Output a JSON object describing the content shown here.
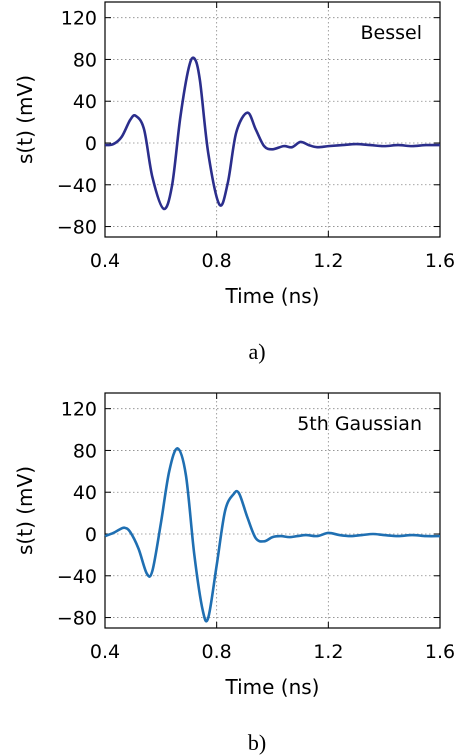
{
  "chart_data": [
    {
      "type": "line",
      "panel_label": "a)",
      "annotation": "Bessel",
      "xlabel": "Time (ns)",
      "ylabel": "s(t) (mV)",
      "xlim": [
        0.4,
        1.6
      ],
      "ylim": [
        -90,
        135
      ],
      "xticks": [
        "0.4",
        "0.8",
        "1.2",
        "1.6"
      ],
      "yticks": [
        "120",
        "80",
        "40",
        "0",
        "−40",
        "−80"
      ],
      "grid": true,
      "color": "#2b2e8c",
      "series": [
        {
          "x": [
            0.4,
            0.43,
            0.46,
            0.49,
            0.51,
            0.54,
            0.57,
            0.61,
            0.64,
            0.67,
            0.7,
            0.72,
            0.74,
            0.77,
            0.81,
            0.84,
            0.87,
            0.91,
            0.94,
            0.97,
            1.0,
            1.04,
            1.07,
            1.1,
            1.13,
            1.16,
            1.2,
            1.25,
            1.3,
            1.35,
            1.4,
            1.45,
            1.5,
            1.55,
            1.6
          ],
          "y": [
            -2,
            -1,
            6,
            22,
            26,
            13,
            -33,
            -63,
            -41,
            25,
            72,
            81,
            60,
            -10,
            -59,
            -38,
            10,
            29,
            13,
            -3,
            -6,
            -3,
            -4,
            1,
            -2,
            -4,
            -3,
            -2,
            -1,
            -2,
            -3,
            -2,
            -3,
            -2,
            -2
          ]
        }
      ]
    },
    {
      "type": "line",
      "panel_label": "b)",
      "annotation": "5th Gaussian",
      "xlabel": "Time (ns)",
      "ylabel": "s(t) (mV)",
      "xlim": [
        0.4,
        1.6
      ],
      "ylim": [
        -90,
        135
      ],
      "xticks": [
        "0.4",
        "0.8",
        "1.2",
        "1.6"
      ],
      "yticks": [
        "120",
        "80",
        "40",
        "0",
        "−40",
        "−80"
      ],
      "grid": true,
      "color": "#1f6fb2",
      "series": [
        {
          "x": [
            0.4,
            0.43,
            0.45,
            0.47,
            0.49,
            0.52,
            0.55,
            0.57,
            0.6,
            0.63,
            0.66,
            0.69,
            0.72,
            0.75,
            0.77,
            0.8,
            0.83,
            0.86,
            0.88,
            0.91,
            0.94,
            0.97,
            1.0,
            1.03,
            1.06,
            1.09,
            1.12,
            1.16,
            1.2,
            1.24,
            1.28,
            1.32,
            1.36,
            1.4,
            1.45,
            1.5,
            1.55,
            1.6
          ],
          "y": [
            -2,
            1,
            4,
            6,
            2,
            -14,
            -38,
            -35,
            10,
            60,
            82,
            56,
            -20,
            -73,
            -80,
            -30,
            22,
            38,
            39,
            16,
            -4,
            -7,
            -3,
            -2,
            -3,
            -2,
            -1,
            -2,
            1,
            -1,
            -2,
            -1,
            0,
            -1,
            -2,
            -1,
            -2,
            -2
          ]
        }
      ]
    }
  ]
}
